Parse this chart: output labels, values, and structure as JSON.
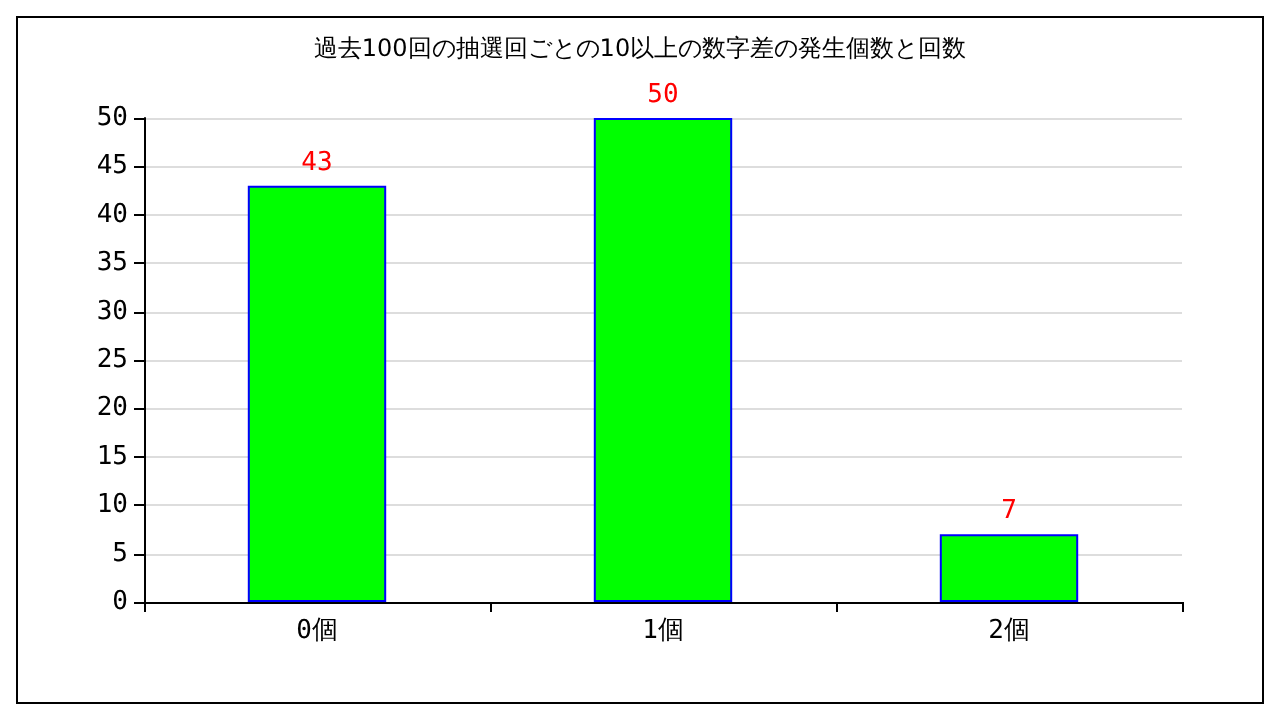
{
  "chart_data": {
    "type": "bar",
    "title": "過去100回の抽選回ごとの10以上の数字差の発生個数と回数",
    "categories": [
      "0個",
      "1個",
      "2個"
    ],
    "values": [
      43,
      50,
      7
    ],
    "color": "#00ff00",
    "ylim": [
      0,
      50
    ],
    "yticks": [
      0,
      5,
      10,
      15,
      20,
      25,
      30,
      35,
      40,
      45,
      50
    ],
    "grid": "y",
    "data_labels": true
  }
}
